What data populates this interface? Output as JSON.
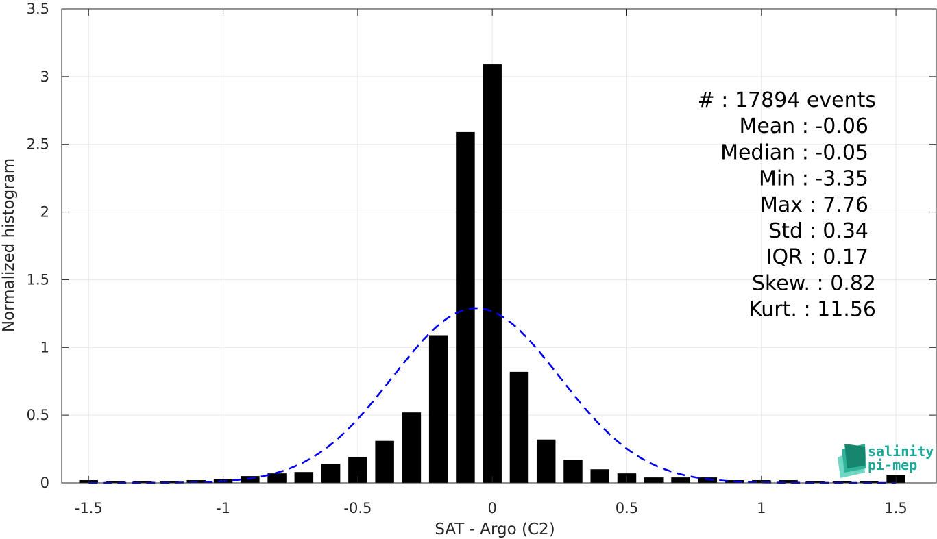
{
  "chart_data": {
    "type": "bar",
    "xlabel": "SAT - Argo (C2)",
    "ylabel": "Normalized histogram",
    "xlim": [
      -1.6,
      1.65
    ],
    "ylim": [
      0,
      3.5
    ],
    "xticks": [
      -1.5,
      -1,
      -0.5,
      0,
      0.5,
      1,
      1.5
    ],
    "xtick_labels": [
      "-1.5",
      "-1",
      "-0.5",
      "0",
      "0.5",
      "1",
      "1.5"
    ],
    "yticks": [
      0,
      0.5,
      1,
      1.5,
      2,
      2.5,
      3,
      3.5
    ],
    "ytick_labels": [
      "0",
      "0.5",
      "1",
      "1.5",
      "2",
      "2.5",
      "3",
      "3.5"
    ],
    "grid": true,
    "bar_width": 0.07,
    "bars": {
      "x": [
        -1.5,
        -1.4,
        -1.3,
        -1.2,
        -1.1,
        -1.0,
        -0.9,
        -0.8,
        -0.7,
        -0.6,
        -0.5,
        -0.4,
        -0.3,
        -0.2,
        -0.1,
        0.0,
        0.1,
        0.2,
        0.3,
        0.4,
        0.5,
        0.6,
        0.7,
        0.8,
        0.9,
        1.0,
        1.1,
        1.2,
        1.3,
        1.4,
        1.5
      ],
      "values": [
        0.02,
        0.01,
        0.01,
        0.01,
        0.02,
        0.03,
        0.05,
        0.07,
        0.08,
        0.14,
        0.19,
        0.31,
        0.52,
        1.09,
        2.59,
        3.09,
        0.82,
        0.32,
        0.17,
        0.1,
        0.07,
        0.04,
        0.04,
        0.04,
        0.02,
        0.02,
        0.02,
        0.01,
        0.01,
        0.01,
        0.06
      ],
      "color": "#000000"
    },
    "fit_curve": {
      "style": "dashed",
      "color": "#0000ee",
      "mean": -0.06,
      "std": 0.31,
      "peak": 1.29,
      "x_range": [
        -1.5,
        1.5
      ]
    },
    "annotations": [
      "#  : 17894 events",
      "Mean : -0.06",
      "Median : -0.05",
      "Min : -3.35",
      "Max : 7.76",
      "Std : 0.34",
      "IQR : 0.17",
      "Skew. : 0.82",
      "Kurt. : 11.56"
    ]
  },
  "logo": {
    "line1": "salinity",
    "line2": "pi-mep",
    "color": "#1aa898"
  }
}
